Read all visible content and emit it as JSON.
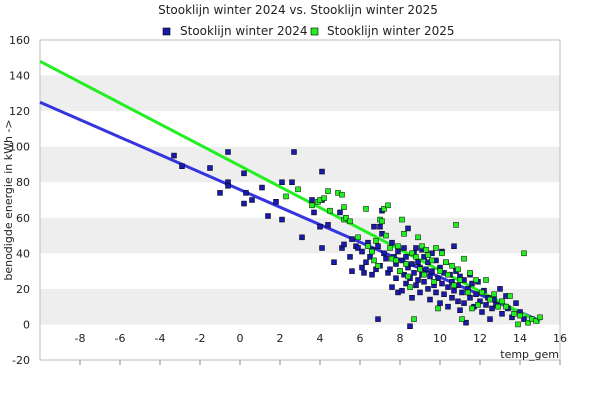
{
  "chart_data": {
    "type": "scatter",
    "title": "Stooklijn winter 2024 vs. Stooklijn winter 2025",
    "xlabel": "temp_gem",
    "ylabel": "benodigde energie in kWh ->",
    "xlim": [
      -10,
      16
    ],
    "ylim": [
      -20,
      160
    ],
    "x_ticks": [
      -8,
      -6,
      -4,
      -2,
      0,
      2,
      4,
      6,
      8,
      10,
      12,
      14,
      16
    ],
    "y_ticks": [
      -20,
      0,
      20,
      40,
      60,
      80,
      100,
      120,
      140,
      160
    ],
    "grid": "horizontal bands",
    "legend_position": "top",
    "series": [
      {
        "name": "Stooklijn winter 2024",
        "color": "#1a1aa8",
        "line_color": "#3535e0",
        "trend_line": {
          "x": [
            -10,
            15
          ],
          "y": [
            125,
            2
          ]
        },
        "points": [
          [
            -3.3,
            95
          ],
          [
            -2.9,
            89
          ],
          [
            -1.5,
            88
          ],
          [
            -1,
            74
          ],
          [
            -0.6,
            97
          ],
          [
            -0.6,
            80
          ],
          [
            -0.6,
            78
          ],
          [
            0.2,
            85
          ],
          [
            0.2,
            68
          ],
          [
            0.3,
            74
          ],
          [
            0.6,
            70
          ],
          [
            1.1,
            77
          ],
          [
            1.4,
            61
          ],
          [
            1.8,
            69
          ],
          [
            2.1,
            59
          ],
          [
            2.1,
            80
          ],
          [
            2.6,
            80
          ],
          [
            2.7,
            97
          ],
          [
            3.1,
            49
          ],
          [
            3.6,
            70
          ],
          [
            3.7,
            63
          ],
          [
            4,
            55
          ],
          [
            4.1,
            43
          ],
          [
            4.1,
            70
          ],
          [
            4.1,
            86
          ],
          [
            4.4,
            56
          ],
          [
            4.7,
            35
          ],
          [
            5,
            63
          ],
          [
            5.1,
            43
          ],
          [
            5.2,
            45
          ],
          [
            5.5,
            38
          ],
          [
            5.6,
            48
          ],
          [
            5.6,
            30
          ],
          [
            5.8,
            44
          ],
          [
            5.9,
            43
          ],
          [
            6.1,
            32
          ],
          [
            6.1,
            41
          ],
          [
            6.2,
            29
          ],
          [
            6.3,
            35
          ],
          [
            6.4,
            46
          ],
          [
            6.5,
            38
          ],
          [
            6.6,
            28
          ],
          [
            6.6,
            42
          ],
          [
            6.7,
            55
          ],
          [
            6.8,
            31
          ],
          [
            6.9,
            3
          ],
          [
            6.9,
            44
          ],
          [
            7,
            33
          ],
          [
            7,
            55
          ],
          [
            7.1,
            64
          ],
          [
            7.1,
            51
          ],
          [
            7.2,
            40
          ],
          [
            7.3,
            37
          ],
          [
            7.4,
            29
          ],
          [
            7.5,
            31
          ],
          [
            7.6,
            21
          ],
          [
            7.6,
            46
          ],
          [
            7.7,
            38
          ],
          [
            7.8,
            26
          ],
          [
            7.8,
            34
          ],
          [
            7.9,
            41
          ],
          [
            7.9,
            18
          ],
          [
            8,
            30
          ],
          [
            8.1,
            19
          ],
          [
            8.1,
            36
          ],
          [
            8.2,
            43
          ],
          [
            8.2,
            28
          ],
          [
            8.3,
            38
          ],
          [
            8.3,
            23
          ],
          [
            8.4,
            54
          ],
          [
            8.4,
            32
          ],
          [
            8.5,
            -1
          ],
          [
            8.5,
            26
          ],
          [
            8.6,
            34
          ],
          [
            8.6,
            15
          ],
          [
            8.7,
            40
          ],
          [
            8.7,
            29
          ],
          [
            8.8,
            43
          ],
          [
            8.8,
            22
          ],
          [
            8.9,
            35
          ],
          [
            8.9,
            25
          ],
          [
            9,
            32
          ],
          [
            9,
            18
          ],
          [
            9.1,
            42
          ],
          [
            9.1,
            28
          ],
          [
            9.2,
            38
          ],
          [
            9.2,
            24
          ],
          [
            9.3,
            31
          ],
          [
            9.4,
            20
          ],
          [
            9.4,
            35
          ],
          [
            9.5,
            27
          ],
          [
            9.5,
            14
          ],
          [
            9.6,
            40
          ],
          [
            9.6,
            30
          ],
          [
            9.7,
            22
          ],
          [
            9.8,
            36
          ],
          [
            9.8,
            18
          ],
          [
            9.9,
            26
          ],
          [
            10,
            32
          ],
          [
            10,
            12
          ],
          [
            10.1,
            41
          ],
          [
            10.1,
            23
          ],
          [
            10.2,
            29
          ],
          [
            10.2,
            17
          ],
          [
            10.3,
            35
          ],
          [
            10.4,
            21
          ],
          [
            10.4,
            10
          ],
          [
            10.5,
            28
          ],
          [
            10.6,
            24
          ],
          [
            10.6,
            15
          ],
          [
            10.7,
            44
          ],
          [
            10.7,
            19
          ],
          [
            10.8,
            30
          ],
          [
            10.9,
            13
          ],
          [
            10.9,
            22
          ],
          [
            11,
            27
          ],
          [
            11,
            8
          ],
          [
            11.1,
            18
          ],
          [
            11.2,
            25
          ],
          [
            11.2,
            12
          ],
          [
            11.3,
            1
          ],
          [
            11.4,
            20
          ],
          [
            11.5,
            28
          ],
          [
            11.5,
            15
          ],
          [
            11.6,
            23
          ],
          [
            11.7,
            10
          ],
          [
            11.8,
            17
          ],
          [
            11.9,
            24
          ],
          [
            12,
            13
          ],
          [
            12.1,
            7
          ],
          [
            12.2,
            19
          ],
          [
            12.3,
            11
          ],
          [
            12.4,
            15
          ],
          [
            12.5,
            3
          ],
          [
            12.6,
            9
          ],
          [
            12.7,
            14
          ],
          [
            12.8,
            11
          ],
          [
            13,
            20
          ],
          [
            13.1,
            6
          ],
          [
            13.3,
            16
          ],
          [
            13.4,
            9
          ],
          [
            13.6,
            4
          ],
          [
            13.8,
            12
          ],
          [
            14,
            7
          ],
          [
            14.2,
            3
          ]
        ]
      },
      {
        "name": "Stooklijn winter 2025",
        "color": "#22ee22",
        "line_color": "#22ee22",
        "trend_line": {
          "x": [
            -10,
            15
          ],
          "y": [
            148,
            1
          ]
        },
        "points": [
          [
            2.3,
            72
          ],
          [
            2.9,
            76
          ],
          [
            3.6,
            67
          ],
          [
            3.9,
            69
          ],
          [
            4,
            70
          ],
          [
            4.2,
            71
          ],
          [
            4.4,
            75
          ],
          [
            4.5,
            64
          ],
          [
            4.9,
            74
          ],
          [
            5.1,
            73
          ],
          [
            5.2,
            66
          ],
          [
            5.2,
            59
          ],
          [
            5.3,
            60
          ],
          [
            5.5,
            58
          ],
          [
            5.9,
            49
          ],
          [
            6.3,
            65
          ],
          [
            6.4,
            44
          ],
          [
            6.6,
            41
          ],
          [
            6.7,
            36
          ],
          [
            6.8,
            47
          ],
          [
            6.9,
            33
          ],
          [
            7,
            59
          ],
          [
            7.1,
            58
          ],
          [
            7.2,
            65
          ],
          [
            7.3,
            50
          ],
          [
            7.4,
            67
          ],
          [
            7.5,
            43
          ],
          [
            7.6,
            37
          ],
          [
            7.8,
            36
          ],
          [
            7.9,
            44
          ],
          [
            8,
            30
          ],
          [
            8.1,
            59
          ],
          [
            8.2,
            51
          ],
          [
            8.3,
            34
          ],
          [
            8.4,
            27
          ],
          [
            8.5,
            21
          ],
          [
            8.6,
            40
          ],
          [
            8.7,
            3
          ],
          [
            8.8,
            38
          ],
          [
            8.9,
            49
          ],
          [
            9,
            31
          ],
          [
            9.1,
            44
          ],
          [
            9.2,
            28
          ],
          [
            9.3,
            42
          ],
          [
            9.4,
            39
          ],
          [
            9.6,
            36
          ],
          [
            9.7,
            24
          ],
          [
            9.8,
            43
          ],
          [
            9.9,
            9
          ],
          [
            10,
            30
          ],
          [
            10.1,
            40
          ],
          [
            10.3,
            35
          ],
          [
            10.4,
            28
          ],
          [
            10.6,
            33
          ],
          [
            10.7,
            22
          ],
          [
            10.8,
            56
          ],
          [
            10.9,
            31
          ],
          [
            11,
            25
          ],
          [
            11.1,
            3
          ],
          [
            11.2,
            37
          ],
          [
            11.4,
            18
          ],
          [
            11.5,
            29
          ],
          [
            11.6,
            9
          ],
          [
            11.8,
            25
          ],
          [
            11.9,
            11
          ],
          [
            12.1,
            18
          ],
          [
            12.3,
            25
          ],
          [
            12.5,
            14
          ],
          [
            12.7,
            17
          ],
          [
            12.9,
            10
          ],
          [
            13.1,
            13
          ],
          [
            13.3,
            10
          ],
          [
            13.5,
            16
          ],
          [
            13.7,
            6
          ],
          [
            13.9,
            0
          ],
          [
            14,
            5
          ],
          [
            14.2,
            40
          ],
          [
            14.4,
            1
          ],
          [
            14.6,
            3
          ],
          [
            14.8,
            2
          ],
          [
            15,
            4
          ]
        ]
      }
    ]
  }
}
